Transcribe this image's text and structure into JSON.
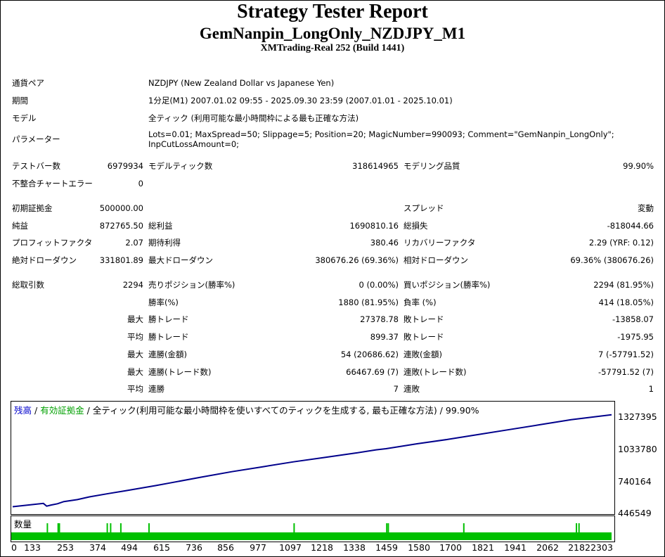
{
  "report": {
    "title": "Strategy Tester Report",
    "subtitle": "GemNanpin_LongOnly_NZDJPY_M1",
    "server": "XMTrading-Real 252 (Build 1441)"
  },
  "info": {
    "symbol_label": "通貨ペア",
    "symbol_value": "NZDJPY (New Zealand Dollar vs Japanese Yen)",
    "period_label": "期間",
    "period_value": "1分足(M1) 2007.01.02 09:55 - 2025.09.30 23:59 (2007.01.01 - 2025.10.01)",
    "model_label": "モデル",
    "model_value": "全ティック (利用可能な最小時間枠による最も正確な方法)",
    "params_label": "パラメーター",
    "params_line1": "Lots=0.01; MaxSpread=50; Slippage=5; Position=20; MagicNumber=990093; Comment=\"GemNanpin_LongOnly\";",
    "params_line2": "InpCutLossAmount=0;"
  },
  "stats": {
    "bars_label": "テストバー数",
    "bars_value": "6979934",
    "ticks_label": "モデルティック数",
    "ticks_value": "318614965",
    "quality_label": "モデリング品質",
    "quality_value": "99.90%",
    "mismatch_label": "不整合チャートエラー",
    "mismatch_value": "0",
    "deposit_label": "初期証拠金",
    "deposit_value": "500000.00",
    "spread_label": "スプレッド",
    "spread_value": "変動",
    "net_label": "純益",
    "net_value": "872765.50",
    "gross_profit_label": "総利益",
    "gross_profit_value": "1690810.16",
    "gross_loss_label": "総損失",
    "gross_loss_value": "-818044.66",
    "pf_label": "プロフィットファクタ",
    "pf_value": "2.07",
    "payoff_label": "期待利得",
    "payoff_value": "380.46",
    "rf_label": "リカバリーファクタ",
    "rf_value": "2.29 (YRF: 0.12)",
    "abs_dd_label": "絶対ドローダウン",
    "abs_dd_value": "331801.89",
    "max_dd_label": "最大ドローダウン",
    "max_dd_value": "380676.26 (69.36%)",
    "rel_dd_label": "相対ドローダウン",
    "rel_dd_value": "69.36% (380676.26)",
    "trades_label": "総取引数",
    "trades_value": "2294",
    "short_label": "売りポジション(勝率%)",
    "short_value": "0 (0.00%)",
    "long_label": "買いポジション(勝率%)",
    "long_value": "2294 (81.95%)",
    "winrate_label": "勝率(%)",
    "winrate_value": "1880 (81.95%)",
    "lossrate_label": "負率 (%)",
    "lossrate_value": "414 (18.05%)",
    "max_prefix": "最大",
    "avg_prefix": "平均",
    "largest_win_label": "勝トレード",
    "largest_win_value": "27378.78",
    "largest_loss_label": "敗トレード",
    "largest_loss_value": "-13858.07",
    "avg_win_label": "勝トレード",
    "avg_win_value": "899.37",
    "avg_loss_label": "敗トレード",
    "avg_loss_value": "-1975.95",
    "max_cons_win_money_label": "連勝(金額)",
    "max_cons_win_money_value": "54 (20686.62)",
    "max_cons_loss_money_label": "連敗(金額)",
    "max_cons_loss_money_value": "7 (-57791.52)",
    "max_cons_win_count_label": "連勝(トレード数)",
    "max_cons_win_count_value": "66467.69 (7)",
    "max_cons_loss_count_label": "連敗(トレード数)",
    "max_cons_loss_count_value": "-57791.52 (7)",
    "avg_cons_win_label": "連勝",
    "avg_cons_win_value": "7",
    "avg_cons_loss_label": "連敗",
    "avg_cons_loss_value": "1"
  },
  "chart_legend": {
    "balance": "残高",
    "sep1": " / ",
    "equity": "有効証拠金",
    "sep2": " / ",
    "rest": "全ティック(利用可能な最小時間枠を使いすべてのティックを生成する, 最も正確な方法) / 99.90%"
  },
  "volume_title": "数量",
  "colors": {
    "balance": "#00008b",
    "equity": "#00b000",
    "volume": "#00c000",
    "legend_balance": "#0000cc",
    "legend_equity": "#00a000"
  },
  "chart_data": {
    "type": "line",
    "ylim": [
      446549,
      1327395
    ],
    "y_ticks": [
      "1327395",
      "1033780",
      "740164",
      "446549"
    ],
    "x_ticks": [
      "0",
      "133",
      "253",
      "374",
      "494",
      "615",
      "736",
      "856",
      "977",
      "1097",
      "1218",
      "1338",
      "1459",
      "1580",
      "1700",
      "1821",
      "1941",
      "2062",
      "2182",
      "2303"
    ],
    "xlim": [
      0,
      2340
    ],
    "series": [
      {
        "name": "残高",
        "x": [
          0,
          120,
          133,
          150,
          175,
          200,
          253,
          300,
          374,
          440,
          494,
          560,
          615,
          736,
          856,
          977,
          1097,
          1218,
          1338,
          1420,
          1459,
          1520,
          1580,
          1700,
          1821,
          1941,
          2062,
          2182,
          2303,
          2340
        ],
        "y": [
          495000,
          525000,
          500000,
          510000,
          522000,
          542000,
          560000,
          585000,
          615000,
          640000,
          662000,
          688000,
          712000,
          765000,
          815000,
          860000,
          905000,
          945000,
          985000,
          1015000,
          1025000,
          1048000,
          1070000,
          1110000,
          1155000,
          1200000,
          1245000,
          1290000,
          1325000,
          1335000
        ]
      }
    ],
    "volume_spikes_x": [
      133,
      175,
      180,
      367,
      380,
      420,
      530,
      1097,
      1459,
      1465,
      1760,
      2200,
      2210
    ]
  }
}
